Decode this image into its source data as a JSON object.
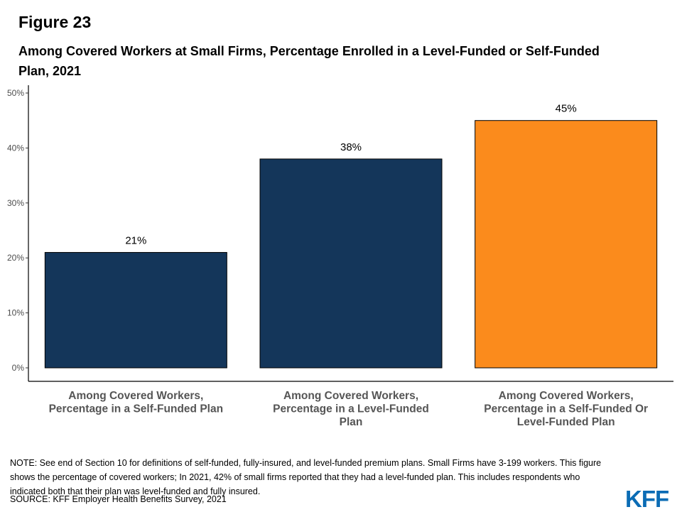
{
  "figure_label": "Figure 23",
  "chart_data": {
    "type": "bar",
    "title": "Among Covered Workers at Small Firms, Percentage Enrolled in a Level-Funded or Self-Funded Plan, 2021",
    "categories": [
      "Among Covered Workers, Percentage in a Self-Funded Plan",
      "Among Covered Workers, Percentage in a Level-Funded Plan",
      "Among Covered Workers, Percentage in a Self-Funded Or Level-Funded Plan"
    ],
    "category_lines": [
      [
        "Among Covered Workers,",
        "Percentage in a Self-Funded Plan"
      ],
      [
        "Among Covered Workers,",
        "Percentage in a Level-Funded",
        "Plan"
      ],
      [
        "Among Covered Workers,",
        "Percentage in a Self-Funded Or",
        "Level-Funded Plan"
      ]
    ],
    "values": [
      21,
      38,
      45
    ],
    "data_labels": [
      "21%",
      "38%",
      "45%"
    ],
    "bar_colors": [
      "#14365a",
      "#14365a",
      "#fb8b1c"
    ],
    "ylim": [
      0,
      50
    ],
    "yticks": [
      0,
      10,
      20,
      30,
      40,
      50
    ],
    "ytick_labels": [
      "0%",
      "10%",
      "20%",
      "30%",
      "40%",
      "50%"
    ],
    "xlabel": "",
    "ylabel": "",
    "grid": false,
    "legend": "none"
  },
  "note": "NOTE: See end of Section 10 for definitions of self-funded, fully-insured, and level-funded premium plans. Small Firms have 3-199 workers. This figure shows the percentage of covered workers; In 2021, 42% of small firms reported that they had a level-funded plan. This includes respondents who indicated both that their plan was level-funded and fully insured.",
  "source": "SOURCE: KFF Employer Health Benefits Survey, 2021",
  "logo_text": "KFF",
  "colors": {
    "brand": "#0b6cb5",
    "axis": "#000000",
    "tick_text": "#4d4d4d",
    "category_text": "#555555"
  }
}
